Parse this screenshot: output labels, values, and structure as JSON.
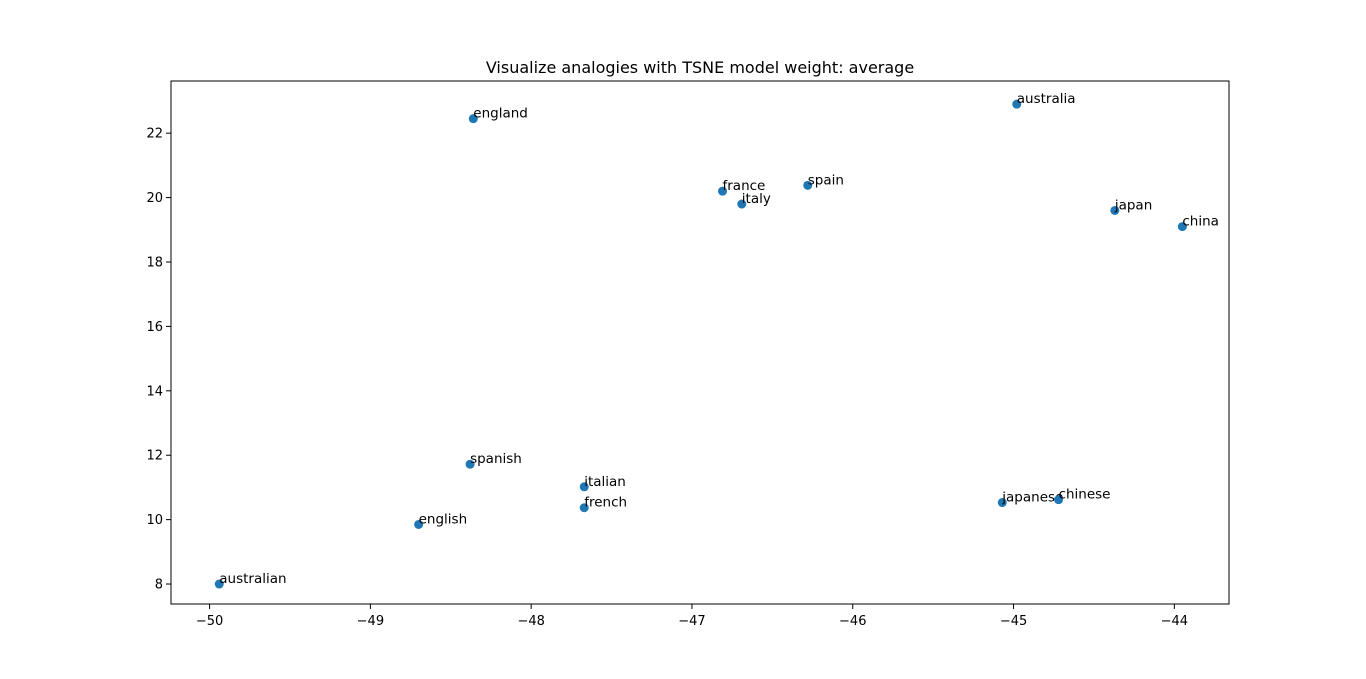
{
  "chart_data": {
    "type": "scatter",
    "title": "Visualize analogies with TSNE  model weight: average",
    "xlabel": "",
    "ylabel": "",
    "xlim": [
      -50.24,
      -43.66
    ],
    "ylim": [
      7.38,
      23.62
    ],
    "xticks": [
      -50,
      -49,
      -48,
      -47,
      -46,
      -45,
      -44
    ],
    "yticks": [
      8,
      10,
      12,
      14,
      16,
      18,
      20,
      22
    ],
    "grid": false,
    "marker_color": "#1f77b4",
    "points": [
      {
        "label": "england",
        "x": -48.36,
        "y": 22.45
      },
      {
        "label": "australia",
        "x": -44.98,
        "y": 22.9
      },
      {
        "label": "france",
        "x": -46.81,
        "y": 20.2
      },
      {
        "label": "spain",
        "x": -46.28,
        "y": 20.38
      },
      {
        "label": "italy",
        "x": -46.69,
        "y": 19.8
      },
      {
        "label": "japan",
        "x": -44.37,
        "y": 19.6
      },
      {
        "label": "china",
        "x": -43.95,
        "y": 19.1
      },
      {
        "label": "spanish",
        "x": -48.38,
        "y": 11.72
      },
      {
        "label": "italian",
        "x": -47.67,
        "y": 11.02
      },
      {
        "label": "french",
        "x": -47.67,
        "y": 10.37
      },
      {
        "label": "japanese",
        "x": -45.07,
        "y": 10.53
      },
      {
        "label": "chinese",
        "x": -44.72,
        "y": 10.62
      },
      {
        "label": "english",
        "x": -48.7,
        "y": 9.85
      },
      {
        "label": "australian",
        "x": -49.94,
        "y": 8.0
      }
    ]
  }
}
